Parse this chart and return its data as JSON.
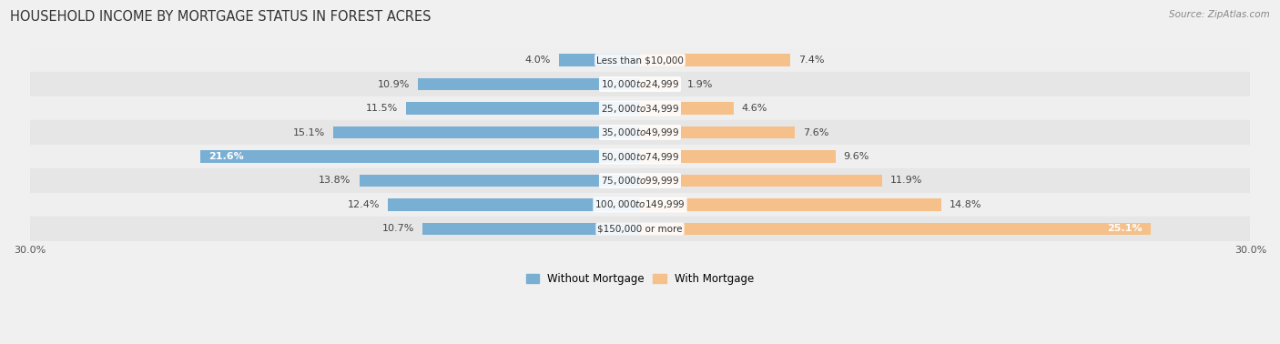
{
  "title": "HOUSEHOLD INCOME BY MORTGAGE STATUS IN FOREST ACRES",
  "source": "Source: ZipAtlas.com",
  "categories": [
    "Less than $10,000",
    "$10,000 to $24,999",
    "$25,000 to $34,999",
    "$35,000 to $49,999",
    "$50,000 to $74,999",
    "$75,000 to $99,999",
    "$100,000 to $149,999",
    "$150,000 or more"
  ],
  "without_mortgage": [
    4.0,
    10.9,
    11.5,
    15.1,
    21.6,
    13.8,
    12.4,
    10.7
  ],
  "with_mortgage": [
    7.4,
    1.9,
    4.6,
    7.6,
    9.6,
    11.9,
    14.8,
    25.1
  ],
  "without_color": "#7aafd4",
  "with_color": "#f5c08a",
  "axis_limit": 30.0,
  "row_colors": [
    "#efefef",
    "#e6e6e6"
  ],
  "legend_labels": [
    "Without Mortgage",
    "With Mortgage"
  ],
  "title_fontsize": 10.5,
  "label_fontsize": 8.5,
  "bar_label_fontsize": 8,
  "category_fontsize": 7.5,
  "axis_label_fontsize": 8
}
